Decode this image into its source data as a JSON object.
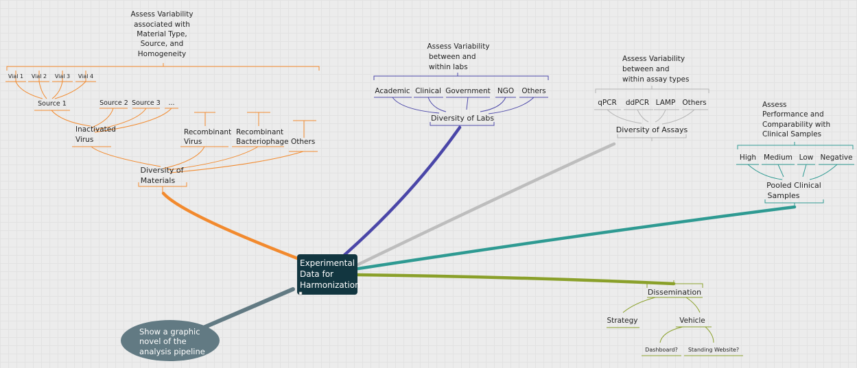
{
  "central": {
    "lines": [
      "Experimental",
      "Data for",
      "Harmonization"
    ]
  },
  "colors": {
    "materials": "#f28a2e",
    "labs": "#4a46a8",
    "assays": "#bdbdbd",
    "clinical": "#2e9a92",
    "dissemination": "#8aa02a",
    "central_bg": "#123640",
    "oval": "#627a83"
  },
  "materials": {
    "heading": [
      "Assess Variability",
      "associated with",
      "Material Type,",
      "Source, and",
      "Homogeneity"
    ],
    "vials": [
      "Vial 1",
      "Vial 2",
      "Vial 3",
      "Vial 4"
    ],
    "sources": [
      "Source 1",
      "Source 2",
      "Source 3",
      "..."
    ],
    "inactivated": [
      "Inactivated",
      "Virus"
    ],
    "recombinant_virus": [
      "Recombinant",
      "Virus"
    ],
    "recombinant_phage": [
      "Recombinant",
      "Bacteriophage"
    ],
    "others": "Others",
    "hub": [
      "Diversity of",
      "Materials"
    ]
  },
  "labs": {
    "heading": [
      "Assess  Variability",
      "between and",
      "within labs"
    ],
    "items": [
      "Academic",
      "Clinical",
      "Government",
      "NGO",
      "Others"
    ],
    "hub": "Diversity of Labs"
  },
  "assays": {
    "heading": [
      "Assess Variability",
      "between and",
      "within assay types"
    ],
    "items": [
      "qPCR",
      "ddPCR",
      "LAMP",
      "Others"
    ],
    "hub": "Diversity of Assays"
  },
  "clinical": {
    "heading": [
      "Assess",
      "Performance and",
      "Comparability with",
      "Clinical Samples"
    ],
    "items": [
      "High",
      "Medium",
      "Low",
      "Negative"
    ],
    "hub": [
      "Pooled Clinical",
      "Samples"
    ]
  },
  "dissemination": {
    "hub": "Dissemination",
    "children": [
      "Strategy",
      "Vehicle"
    ],
    "vehicle_children": [
      "Dashboard?",
      "Standing Website?"
    ]
  },
  "note": {
    "lines": [
      "Show a graphic",
      "novel of the",
      "analysis pipeline"
    ]
  }
}
